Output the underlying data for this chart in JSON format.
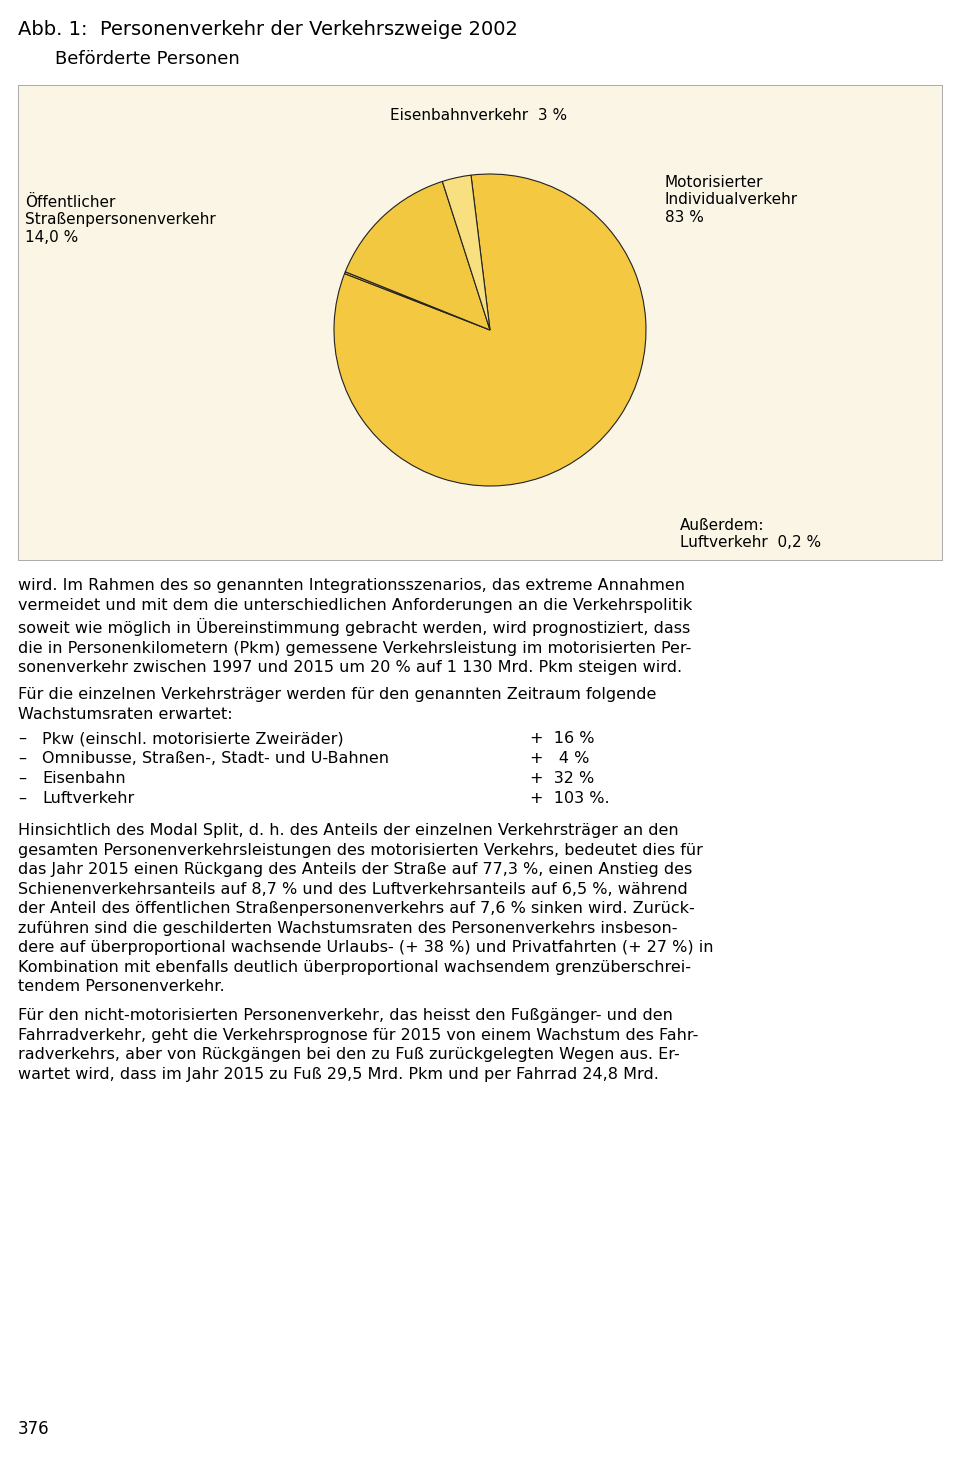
{
  "title_line1": "Abb. 1:  Personenverkehr der Verkehrszweige 2002",
  "title_line2": "Beförderte Personen",
  "chart_bg": "#FAF5E4",
  "page_bg": "#FFFFFF",
  "pie_values": [
    83,
    0.2,
    14.0,
    3
  ],
  "pie_colors": [
    "#F5C842",
    "#F5C842",
    "#F2C840",
    "#F8E080"
  ],
  "pie_edge_color": "#222222",
  "pie_edge_width": 0.8,
  "pie_startangle": 97,
  "label_eisenbahn": "Eisenbahnverkehr  3 %",
  "label_oeffentlich": "Öffentlicher\nStraßenpersonenverkehr\n14,0 %",
  "label_motorisiert": "Motorisierter\nIndividualverkehr\n83 %",
  "label_luft": "Außerdem:\nLuftverkehr  0,2 %",
  "para1": "wird. Im Rahmen des so genannten Integrationsszenarios, das extreme Annahmen\nvermeidet und mit dem die unterschiedlichen Anforderungen an die Verkehrspolitik\nsoweit wie möglich in Übereinstimmung gebracht werden, wird prognostiziert, dass\ndie in Personenkilometern (Pkm) gemessene Verkehrsleistung im motorisierten Per-\nsonenverkehr zwischen 1997 und 2015 um 20 % auf 1 130 Mrd. Pkm steigen wird.",
  "para2": "Für die einzelnen Verkehrsträger werden für den genannten Zeitraum folgende\nWachstumsraten erwartet:",
  "list_labels": [
    "Pkw (einschl. motorisierte Zweiräder)",
    "Omnibusse, Straßen-, Stadt- und U-Bahnen",
    "Eisenbahn",
    "Luftverkehr"
  ],
  "list_values": [
    "+  16 %",
    "+   4 %",
    "+  32 %",
    "+  103 %."
  ],
  "para3": "Hinsichtlich des Modal Split, d. h. des Anteils der einzelnen Verkehrsträger an den\ngesamten Personenverkehrsleistungen des motorisierten Verkehrs, bedeutet dies für\ndas Jahr 2015 einen Rückgang des Anteils der Straße auf 77,3 %, einen Anstieg des\nSchienenverkehrsanteils auf 8,7 % und des Luftverkehrsanteils auf 6,5 %, während\nder Anteil des öffentlichen Straßenpersonenverkehrs auf 7,6 % sinken wird. Zurück-\nzuführen sind die geschilderten Wachstumsraten des Personenverkehrs insbeson-\ndere auf überproportional wachsende Urlaubs- (+ 38 %) und Privatfahrten (+ 27 %) in\nKombination mit ebenfalls deutlich überproportional wachsendem grenzüberschrei-\ntendem Personenverkehr.",
  "para4": "Für den nicht-motorisierten Personenverkehr, das heisst den Fußgänger- und den\nFahrradverkehr, geht die Verkehrsprognose für 2015 von einem Wachstum des Fahr-\nradverkehrs, aber von Rückgängen bei den zu Fuß zurückgelegten Wegen aus. Er-\nwartet wird, dass im Jahr 2015 zu Fuß 29,5 Mrd. Pkm und per Fahrrad 24,8 Mrd.",
  "page_number": "376",
  "font_size_body": 11.5,
  "font_size_title": 14,
  "font_size_subtitle": 13,
  "font_size_labels": 11
}
